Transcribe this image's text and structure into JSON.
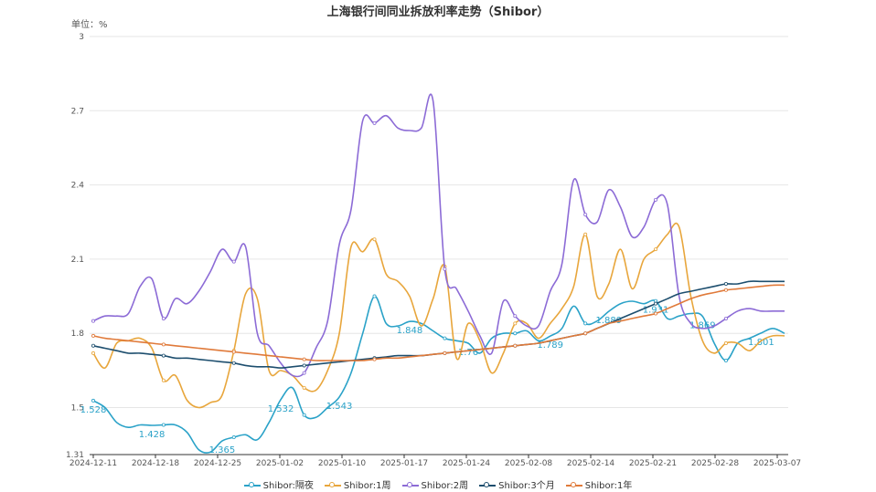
{
  "chart_data": {
    "type": "line",
    "title": "上海银行间同业拆放利率走势（Shibor）",
    "unit_label": "单位：%",
    "ylim": [
      1.31,
      3
    ],
    "y_ticks": [
      "1.31",
      "1.5",
      "1.8",
      "2.1",
      "2.4",
      "2.7",
      "3"
    ],
    "y_tick_values": [
      1.31,
      1.5,
      1.8,
      2.1,
      2.4,
      2.7,
      3
    ],
    "x_ticks": [
      "2024-12-11",
      "2024-12-18",
      "2024-12-25",
      "2025-01-02",
      "2025-01-10",
      "2025-01-17",
      "2025-01-24",
      "2025-02-08",
      "2025-02-14",
      "2025-02-21",
      "2025-02-28",
      "2025-03-07"
    ],
    "x_count": 60,
    "grid": true,
    "legend_position": "bottom",
    "series": [
      {
        "name": "Shibor:隔夜",
        "color": "#2aa2c8",
        "values": [
          1.528,
          1.5,
          1.44,
          1.42,
          1.43,
          1.428,
          1.43,
          1.43,
          1.4,
          1.33,
          1.32,
          1.365,
          1.38,
          1.39,
          1.37,
          1.44,
          1.532,
          1.58,
          1.47,
          1.46,
          1.5,
          1.543,
          1.64,
          1.8,
          1.95,
          1.84,
          1.83,
          1.848,
          1.84,
          1.81,
          1.78,
          1.77,
          1.76,
          1.72,
          1.78,
          1.8,
          1.8,
          1.81,
          1.77,
          1.789,
          1.82,
          1.91,
          1.84,
          1.85,
          1.889,
          1.92,
          1.93,
          1.92,
          1.931,
          1.86,
          1.87,
          1.88,
          1.869,
          1.76,
          1.69,
          1.76,
          1.78,
          1.801,
          1.82,
          1.8
        ],
        "point_labels": [
          [
            0,
            "1.528"
          ],
          [
            5,
            "1.428"
          ],
          [
            11,
            "1.365"
          ],
          [
            16,
            "1.532"
          ],
          [
            21,
            "1.543"
          ],
          [
            27,
            "1.848"
          ],
          [
            32,
            "1.76"
          ],
          [
            39,
            "1.789"
          ],
          [
            44,
            "1.889"
          ],
          [
            48,
            "1.931"
          ],
          [
            52,
            "1.869"
          ],
          [
            57,
            "1.801"
          ]
        ]
      },
      {
        "name": "Shibor:1周",
        "color": "#e8a63c",
        "values": [
          1.72,
          1.66,
          1.76,
          1.77,
          1.78,
          1.74,
          1.61,
          1.63,
          1.53,
          1.5,
          1.52,
          1.55,
          1.73,
          1.96,
          1.94,
          1.65,
          1.65,
          1.63,
          1.58,
          1.57,
          1.65,
          1.8,
          2.15,
          2.13,
          2.18,
          2.04,
          2.01,
          1.95,
          1.83,
          1.94,
          2.07,
          1.7,
          1.84,
          1.77,
          1.64,
          1.72,
          1.84,
          1.84,
          1.78,
          1.84,
          1.9,
          1.99,
          2.2,
          1.95,
          2.0,
          2.14,
          1.98,
          2.1,
          2.14,
          2.2,
          2.23,
          1.95,
          1.77,
          1.72,
          1.76,
          1.76,
          1.73,
          1.77,
          1.79,
          1.79
        ],
        "point_labels": []
      },
      {
        "name": "Shibor:2周",
        "color": "#8c6bd6",
        "values": [
          1.85,
          1.87,
          1.87,
          1.88,
          1.99,
          2.02,
          1.86,
          1.94,
          1.92,
          1.97,
          2.05,
          2.14,
          2.09,
          2.15,
          1.8,
          1.75,
          1.68,
          1.63,
          1.64,
          1.74,
          1.85,
          2.16,
          2.3,
          2.66,
          2.65,
          2.68,
          2.63,
          2.62,
          2.63,
          2.74,
          2.06,
          1.98,
          1.89,
          1.79,
          1.72,
          1.93,
          1.87,
          1.83,
          1.83,
          1.97,
          2.08,
          2.42,
          2.28,
          2.25,
          2.38,
          2.31,
          2.19,
          2.23,
          2.34,
          2.32,
          1.95,
          1.84,
          1.82,
          1.83,
          1.86,
          1.89,
          1.9,
          1.89,
          1.89,
          1.89
        ],
        "point_labels": []
      },
      {
        "name": "Shibor:3个月",
        "color": "#1d4e6e",
        "values": [
          1.75,
          1.74,
          1.73,
          1.72,
          1.72,
          1.715,
          1.71,
          1.7,
          1.7,
          1.695,
          1.69,
          1.685,
          1.68,
          1.67,
          1.665,
          1.665,
          1.66,
          1.665,
          1.67,
          1.675,
          1.68,
          1.685,
          1.69,
          1.695,
          1.7,
          1.705,
          1.71,
          1.71,
          1.71,
          1.715,
          1.72,
          1.725,
          1.73,
          1.735,
          1.74,
          1.745,
          1.75,
          1.755,
          1.76,
          1.77,
          1.78,
          1.79,
          1.8,
          1.82,
          1.84,
          1.86,
          1.88,
          1.9,
          1.92,
          1.94,
          1.96,
          1.97,
          1.98,
          1.99,
          2.0,
          2.0,
          2.01,
          2.01,
          2.01,
          2.01
        ],
        "point_labels": []
      },
      {
        "name": "Shibor:1年",
        "color": "#e07a3a",
        "values": [
          1.79,
          1.78,
          1.775,
          1.77,
          1.765,
          1.76,
          1.755,
          1.75,
          1.745,
          1.74,
          1.735,
          1.73,
          1.725,
          1.72,
          1.715,
          1.71,
          1.705,
          1.7,
          1.695,
          1.69,
          1.69,
          1.69,
          1.69,
          1.69,
          1.695,
          1.7,
          1.7,
          1.705,
          1.71,
          1.715,
          1.72,
          1.725,
          1.73,
          1.735,
          1.74,
          1.745,
          1.75,
          1.755,
          1.76,
          1.77,
          1.78,
          1.79,
          1.8,
          1.82,
          1.84,
          1.85,
          1.86,
          1.87,
          1.88,
          1.9,
          1.92,
          1.94,
          1.955,
          1.965,
          1.975,
          1.98,
          1.985,
          1.99,
          1.995,
          1.995
        ],
        "point_labels": []
      }
    ]
  }
}
